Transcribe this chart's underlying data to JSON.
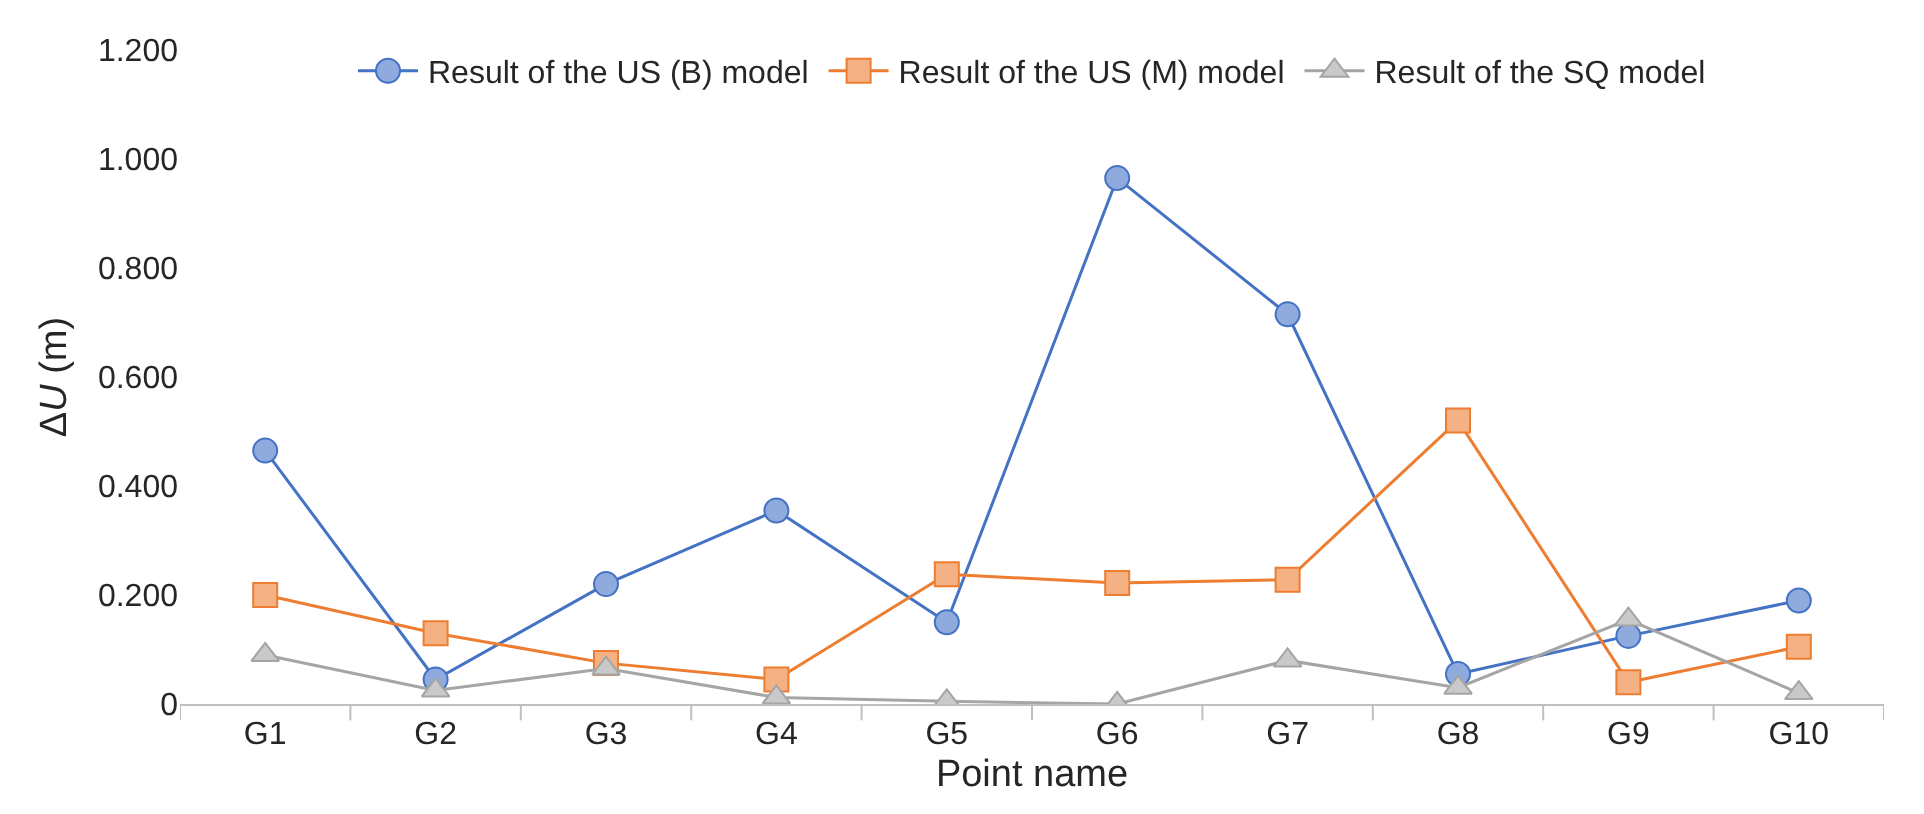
{
  "chart_data": {
    "type": "line",
    "xlabel": "Point name",
    "ylabel": "ΔU (m)",
    "categories": [
      "G1",
      "G2",
      "G3",
      "G4",
      "G5",
      "G6",
      "G7",
      "G8",
      "G9",
      "G10"
    ],
    "series": [
      {
        "name": "Result of the US (B) model",
        "color": "#4472c4",
        "marker": "circle",
        "values": [
          0.465,
          0.045,
          0.22,
          0.355,
          0.15,
          0.965,
          0.715,
          0.055,
          0.125,
          0.19
        ]
      },
      {
        "name": "Result of the US (M) model",
        "color": "#ed7d31",
        "marker": "square",
        "values": [
          0.2,
          0.13,
          0.075,
          0.045,
          0.238,
          0.222,
          0.228,
          0.52,
          0.04,
          0.105
        ]
      },
      {
        "name": "Result of the SQ model",
        "color": "#a5a5a5",
        "marker": "triangle",
        "values": [
          0.09,
          0.025,
          0.065,
          0.012,
          0.005,
          0.0,
          0.08,
          0.03,
          0.155,
          0.02
        ]
      }
    ],
    "ylim": [
      0,
      1.2
    ],
    "yticks": [
      0,
      {
        "value": 0.2,
        "label": "0.200"
      },
      {
        "value": 0.4,
        "label": "0.400"
      },
      {
        "value": 0.6,
        "label": "0.600"
      },
      {
        "value": 0.8,
        "label": "0.800"
      },
      {
        "value": 1.0,
        "label": "1.000"
      },
      {
        "value": 1.2,
        "label": "1.200"
      }
    ],
    "legend": "top"
  }
}
